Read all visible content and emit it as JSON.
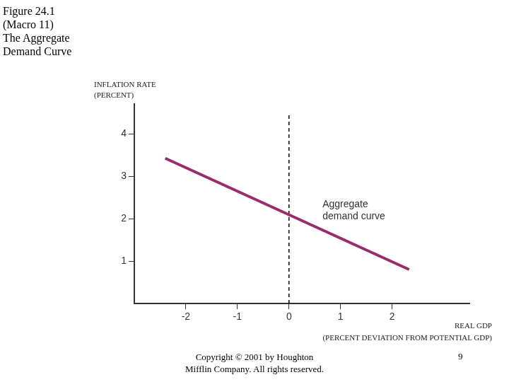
{
  "chart_data": {
    "type": "line",
    "title": [
      "Figure 24.1",
      "(Macro 11)",
      "The Aggregate",
      "Demand Curve"
    ],
    "x_label": [
      "REAL GDP",
      "(PERCENT DEVIATION FROM POTENTIAL GDP)"
    ],
    "y_label": [
      "INFLATION RATE",
      "(PERCENT)"
    ],
    "series": [
      {
        "color": "#9b2c6c",
        "line_style": "solid",
        "x": [
          -2.4,
          2.33
        ],
        "values": [
          3.42,
          0.8
        ]
      },
      {
        "color": "#000000",
        "line_style": "dashed",
        "x": [
          0,
          0
        ],
        "values": [
          0,
          4.48
        ]
      }
    ],
    "annotations": [
      {
        "text": [
          "Aggregate",
          "demand curve"
        ],
        "x": 0.65,
        "y": 2.45
      }
    ],
    "xlim": [
      -3,
      3.5
    ],
    "xticks": [
      -2,
      -1,
      0,
      1,
      2
    ],
    "ylim": [
      0,
      4.7
    ],
    "yticks": [
      1,
      2,
      3,
      4
    ],
    "grid": false
  },
  "footer": {
    "copyright": [
      "Copyright © 2001 by Houghton",
      "Mifflin Company. All rights reserved."
    ],
    "page": 9
  }
}
